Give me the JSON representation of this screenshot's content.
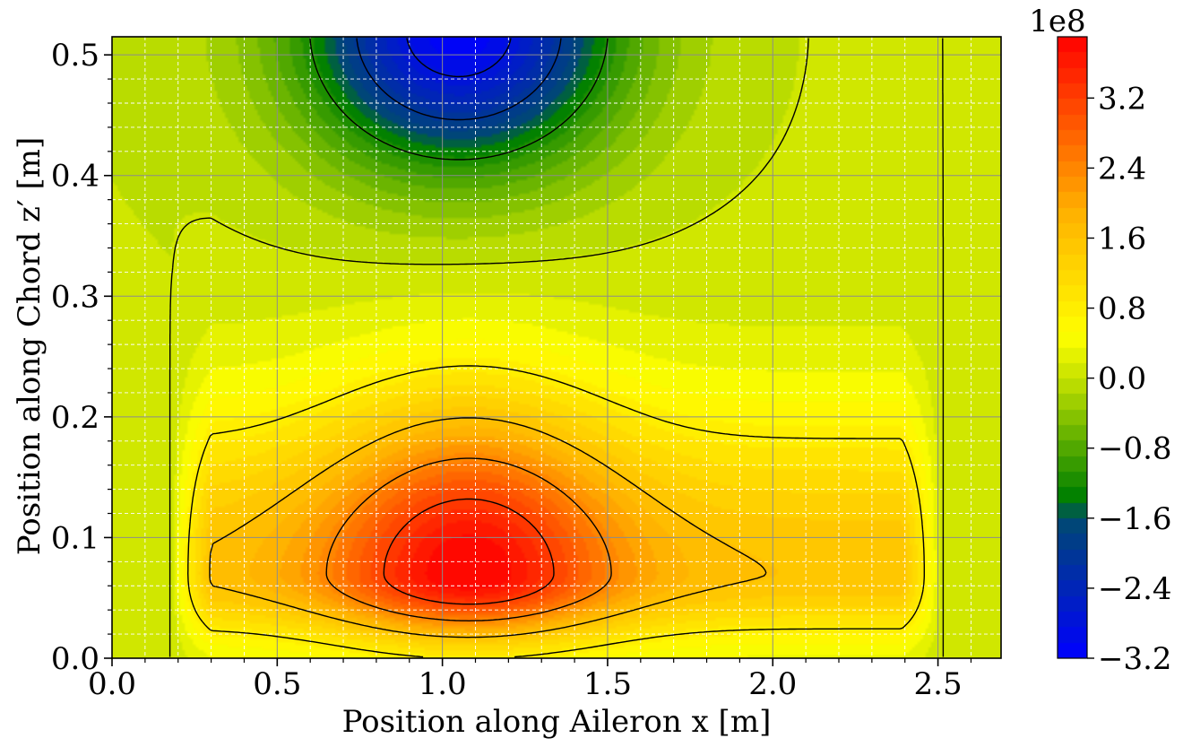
{
  "chart_data": {
    "type": "contour",
    "xlabel": "Position along Aileron x [m]",
    "ylabel": "Position along Chord z′ [m]",
    "xlim": [
      0.0,
      2.691
    ],
    "ylim": [
      0.0,
      0.515
    ],
    "x_ticks": [
      "0.0",
      "0.5",
      "1.0",
      "1.5",
      "2.0",
      "2.5"
    ],
    "y_ticks": [
      "0.0",
      "0.1",
      "0.2",
      "0.3",
      "0.4",
      "0.5"
    ],
    "grid": true,
    "colorbar": {
      "multiplier": "1e8",
      "range": [
        -3.2,
        3.9
      ],
      "ticks": [
        "−3.2",
        "−2.4",
        "−1.6",
        "−0.8",
        "0.0",
        "0.8",
        "1.6",
        "2.4",
        "3.2"
      ],
      "colors": [
        "#0000ff",
        "#008000",
        "#ffff00",
        "#ff0000"
      ]
    },
    "field": {
      "positive_peak": {
        "x": 1.08,
        "z": 0.07,
        "value": 3.9
      },
      "negative_peak": {
        "x": 1.05,
        "z": 0.52,
        "value": -3.2
      }
    }
  }
}
